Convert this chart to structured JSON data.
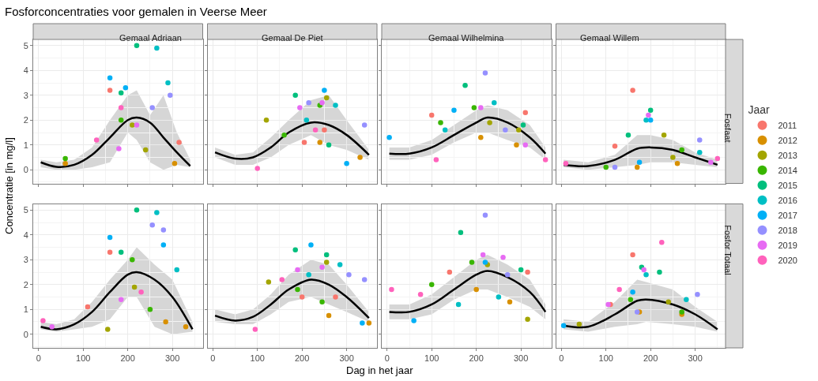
{
  "chart_data": [
    {
      "type": "scatter",
      "title": "Gemaal Adriaan",
      "annotations": [
        "Fosforconcentraties voor gemalen in Veerse Meer"
      ],
      "ylabel": "Concentratie [in mg/l]",
      "xlim": [
        -12,
        368
      ],
      "ylim": [
        -0.55,
        5.25
      ],
      "xticks": [
        0,
        100,
        200,
        300
      ],
      "yticks": [
        0,
        1,
        2,
        3,
        4,
        5
      ],
      "tick_labels": "y",
      "grid": true,
      "marker": "circle",
      "series": [
        {
          "type": "line",
          "marker": "none",
          "color": "#000000",
          "x": [
            5,
            40,
            80,
            120,
            160,
            200,
            220,
            250,
            280,
            310,
            340
          ],
          "values": [
            0.3,
            0.12,
            0.2,
            0.6,
            1.3,
            2.0,
            2.1,
            1.9,
            1.3,
            0.7,
            0.15
          ],
          "lower": [
            0.1,
            0,
            0,
            0.1,
            0.3,
            1.5,
            1.2,
            0.3,
            0,
            0.2,
            0.1
          ],
          "upper": [
            0.4,
            0.3,
            0.4,
            0.9,
            2.0,
            3.0,
            3.2,
            2.2,
            3.0,
            1.5,
            0.4
          ]
        },
        {
          "color": "#F8766D",
          "x": [
            160,
            315
          ],
          "values": [
            3.2,
            1.1
          ]
        },
        {
          "color": "#D89000",
          "x": [
            305,
            60
          ],
          "values": [
            0.25,
            0.25
          ]
        },
        {
          "color": "#A3A500",
          "x": [
            210,
            240
          ],
          "values": [
            1.8,
            0.8
          ]
        },
        {
          "color": "#39B600",
          "x": [
            185,
            60
          ],
          "values": [
            2.0,
            0.45
          ]
        },
        {
          "color": "#00BF7D",
          "x": [
            220,
            185
          ],
          "values": [
            5.0,
            3.1
          ]
        },
        {
          "color": "#00BFC4",
          "x": [
            265,
            290
          ],
          "values": [
            4.9,
            3.5
          ]
        },
        {
          "color": "#00B0F6",
          "x": [
            160,
            195
          ],
          "values": [
            3.7,
            3.3
          ]
        },
        {
          "color": "#9590FF",
          "x": [
            255,
            295
          ],
          "values": [
            2.5,
            3.0
          ]
        },
        {
          "color": "#E76BF3",
          "x": [
            180,
            220
          ],
          "values": [
            0.85,
            1.8
          ]
        },
        {
          "color": "#FF62BC",
          "x": [
            185,
            130
          ],
          "values": [
            2.5,
            1.2
          ]
        }
      ]
    },
    {
      "type": "scatter",
      "title": "Gemaal De Piet",
      "xlim": [
        -12,
        368
      ],
      "ylim": [
        -0.55,
        5.25
      ],
      "xticks": [
        0,
        100,
        200,
        300
      ],
      "yticks": [
        0,
        1,
        2,
        3,
        4,
        5
      ],
      "tick_labels": false,
      "grid": true,
      "marker": "circle",
      "series": [
        {
          "type": "line",
          "marker": "none",
          "color": "#000000",
          "x": [
            5,
            50,
            90,
            130,
            170,
            220,
            260,
            300,
            350
          ],
          "values": [
            0.7,
            0.45,
            0.5,
            0.9,
            1.5,
            1.9,
            1.8,
            1.4,
            0.6
          ],
          "lower": [
            0.5,
            0.2,
            0.2,
            0.5,
            1.0,
            1.4,
            1.0,
            0.8,
            0.4
          ],
          "upper": [
            0.9,
            0.6,
            0.7,
            1.3,
            2.0,
            2.8,
            3.0,
            2.0,
            0.8
          ]
        },
        {
          "color": "#F8766D",
          "x": [
            205,
            250
          ],
          "values": [
            1.1,
            1.6
          ]
        },
        {
          "color": "#D89000",
          "x": [
            330,
            240
          ],
          "values": [
            0.5,
            1.1
          ]
        },
        {
          "color": "#A3A500",
          "x": [
            120,
            255
          ],
          "values": [
            2.0,
            2.9
          ]
        },
        {
          "color": "#39B600",
          "x": [
            240,
            160
          ],
          "values": [
            2.6,
            1.4
          ]
        },
        {
          "color": "#00BF7D",
          "x": [
            185,
            260
          ],
          "values": [
            3.0,
            1.0
          ]
        },
        {
          "color": "#00BFC4",
          "x": [
            210,
            275
          ],
          "values": [
            2.0,
            2.6
          ]
        },
        {
          "color": "#00B0F6",
          "x": [
            250,
            300
          ],
          "values": [
            3.2,
            0.25
          ]
        },
        {
          "color": "#9590FF",
          "x": [
            215,
            340
          ],
          "values": [
            2.7,
            1.8
          ]
        },
        {
          "color": "#E76BF3",
          "x": [
            195,
            245
          ],
          "values": [
            2.5,
            2.7
          ]
        },
        {
          "color": "#FF62BC",
          "x": [
            100,
            230
          ],
          "values": [
            0.05,
            1.6
          ]
        }
      ]
    },
    {
      "type": "scatter",
      "title": "Gemaal Wilhelmina",
      "xlim": [
        -12,
        368
      ],
      "ylim": [
        -0.55,
        5.25
      ],
      "xticks": [
        0,
        100,
        200,
        300
      ],
      "yticks": [
        0,
        1,
        2,
        3,
        4,
        5
      ],
      "tick_labels": false,
      "grid": true,
      "marker": "circle",
      "series": [
        {
          "type": "line",
          "marker": "none",
          "color": "#000000",
          "x": [
            5,
            50,
            100,
            150,
            200,
            225,
            270,
            320,
            355
          ],
          "values": [
            0.65,
            0.65,
            0.9,
            1.4,
            1.9,
            2.1,
            1.9,
            1.3,
            0.65
          ],
          "lower": [
            0.4,
            0.4,
            0.6,
            1.1,
            1.5,
            1.5,
            1.2,
            0.9,
            0.4
          ],
          "upper": [
            0.9,
            0.9,
            1.2,
            1.8,
            2.4,
            2.6,
            2.4,
            1.8,
            0.9
          ]
        },
        {
          "color": "#F8766D",
          "x": [
            100,
            310
          ],
          "values": [
            2.2,
            2.3
          ]
        },
        {
          "color": "#D89000",
          "x": [
            290,
            210
          ],
          "values": [
            1.0,
            1.3
          ]
        },
        {
          "color": "#A3A500",
          "x": [
            230,
            295
          ],
          "values": [
            1.9,
            1.6
          ]
        },
        {
          "color": "#39B600",
          "x": [
            195,
            120
          ],
          "values": [
            2.5,
            1.9
          ]
        },
        {
          "color": "#00BF7D",
          "x": [
            175,
            305
          ],
          "values": [
            3.4,
            1.8
          ]
        },
        {
          "color": "#00BFC4",
          "x": [
            240,
            130
          ],
          "values": [
            2.7,
            1.6
          ]
        },
        {
          "color": "#00B0F6",
          "x": [
            5,
            150
          ],
          "values": [
            1.3,
            2.4
          ]
        },
        {
          "color": "#9590FF",
          "x": [
            220,
            265
          ],
          "values": [
            3.9,
            1.6
          ]
        },
        {
          "color": "#E76BF3",
          "x": [
            210,
            310
          ],
          "values": [
            2.5,
            1.0
          ]
        },
        {
          "color": "#FF62BC",
          "x": [
            110,
            355
          ],
          "values": [
            0.4,
            0.4
          ]
        }
      ]
    },
    {
      "type": "scatter",
      "title": "Gemaal Willem",
      "annotations": [
        "Fosfaat"
      ],
      "legend_title": "Jaar",
      "legend": "right",
      "xlim": [
        -12,
        368
      ],
      "ylim": [
        -0.55,
        5.25
      ],
      "xticks": [
        0,
        100,
        200,
        300
      ],
      "yticks": [
        0,
        1,
        2,
        3,
        4,
        5
      ],
      "tick_labels": false,
      "grid": true,
      "marker": "circle",
      "series": [
        {
          "type": "line",
          "marker": "none",
          "color": "#000000",
          "x": [
            5,
            60,
            120,
            170,
            200,
            250,
            300,
            350
          ],
          "values": [
            0.2,
            0.15,
            0.4,
            0.85,
            0.9,
            0.8,
            0.5,
            0.2
          ],
          "lower": [
            0.1,
            0,
            0.1,
            0.2,
            0.3,
            0.3,
            0.2,
            0.1
          ],
          "upper": [
            0.4,
            0.3,
            0.6,
            1.4,
            1.4,
            1.2,
            0.7,
            0.4
          ]
        },
        {
          "name": "2011",
          "color": "#F8766D",
          "x": [
            160,
            120
          ],
          "values": [
            3.2,
            0.95
          ]
        },
        {
          "name": "2012",
          "color": "#D89000",
          "x": [
            170,
            260
          ],
          "values": [
            0.1,
            0.25
          ]
        },
        {
          "name": "2013",
          "color": "#A3A500",
          "x": [
            230,
            250
          ],
          "values": [
            1.4,
            0.5
          ]
        },
        {
          "name": "2014",
          "color": "#39B600",
          "x": [
            270,
            100
          ],
          "values": [
            0.8,
            0.1
          ]
        },
        {
          "name": "2015",
          "color": "#00BF7D",
          "x": [
            150,
            200
          ],
          "values": [
            1.4,
            2.4
          ]
        },
        {
          "name": "2016",
          "color": "#00BFC4",
          "x": [
            190,
            310
          ],
          "values": [
            2.0,
            0.7
          ]
        },
        {
          "name": "2017",
          "color": "#00B0F6",
          "x": [
            200,
            175
          ],
          "values": [
            2.0,
            0.3
          ]
        },
        {
          "name": "2018",
          "color": "#9590FF",
          "x": [
            310,
            120
          ],
          "values": [
            1.2,
            0.1
          ]
        },
        {
          "name": "2019",
          "color": "#E76BF3",
          "x": [
            195,
            335
          ],
          "values": [
            2.2,
            0.3
          ]
        },
        {
          "name": "2020",
          "color": "#FF62BC",
          "x": [
            10,
            350
          ],
          "values": [
            0.25,
            0.45
          ]
        }
      ]
    },
    {
      "type": "scatter",
      "xlim": [
        -12,
        368
      ],
      "ylim": [
        -0.55,
        5.25
      ],
      "xticks": [
        0,
        100,
        200,
        300
      ],
      "yticks": [
        0,
        1,
        2,
        3,
        4,
        5
      ],
      "grid": true,
      "marker": "circle",
      "series": [
        {
          "type": "line",
          "marker": "none",
          "color": "#000000",
          "x": [
            5,
            40,
            80,
            120,
            160,
            200,
            220,
            260,
            300,
            345
          ],
          "values": [
            0.3,
            0.2,
            0.4,
            0.9,
            1.7,
            2.4,
            2.5,
            2.2,
            1.5,
            0.2
          ],
          "lower": [
            0.2,
            0.1,
            0.2,
            0.3,
            0.6,
            1.5,
            1.5,
            0.3,
            0,
            0.1
          ],
          "upper": [
            0.5,
            0.4,
            0.6,
            1.3,
            2.2,
            3.0,
            3.5,
            2.8,
            2.2,
            0.5
          ]
        },
        {
          "color": "#F8766D",
          "x": [
            160,
            110
          ],
          "values": [
            3.3,
            1.1
          ]
        },
        {
          "color": "#D89000",
          "x": [
            330,
            285
          ],
          "values": [
            0.3,
            0.5
          ]
        },
        {
          "color": "#A3A500",
          "x": [
            215,
            155
          ],
          "values": [
            1.9,
            0.2
          ]
        },
        {
          "color": "#39B600",
          "x": [
            210,
            250
          ],
          "values": [
            3.0,
            1.0
          ]
        },
        {
          "color": "#00BF7D",
          "x": [
            220,
            185
          ],
          "values": [
            5.0,
            3.3
          ]
        },
        {
          "color": "#00BFC4",
          "x": [
            265,
            310
          ],
          "values": [
            4.9,
            2.6
          ]
        },
        {
          "color": "#00B0F6",
          "x": [
            160,
            280
          ],
          "values": [
            3.9,
            3.6
          ]
        },
        {
          "color": "#9590FF",
          "x": [
            255,
            280
          ],
          "values": [
            4.4,
            4.2
          ]
        },
        {
          "color": "#E76BF3",
          "x": [
            185,
            30
          ],
          "values": [
            1.4,
            0.3
          ]
        },
        {
          "color": "#FF62BC",
          "x": [
            10,
            230
          ],
          "values": [
            0.55,
            1.7
          ]
        }
      ]
    },
    {
      "type": "scatter",
      "xlabel": "Dag in het jaar",
      "xlim": [
        -12,
        368
      ],
      "ylim": [
        -0.55,
        5.25
      ],
      "xticks": [
        0,
        100,
        200,
        300
      ],
      "yticks": [
        0,
        1,
        2,
        3,
        4,
        5
      ],
      "tick_labels": "x",
      "grid": true,
      "marker": "circle",
      "series": [
        {
          "type": "line",
          "marker": "none",
          "color": "#000000",
          "x": [
            5,
            50,
            90,
            130,
            170,
            220,
            260,
            300,
            350
          ],
          "values": [
            0.75,
            0.55,
            0.7,
            1.2,
            1.8,
            2.2,
            2.0,
            1.5,
            0.65
          ],
          "lower": [
            0.5,
            0.4,
            0.4,
            0.8,
            1.3,
            1.5,
            1.2,
            0.9,
            0.5
          ],
          "upper": [
            1.0,
            0.8,
            1.0,
            1.6,
            2.4,
            3.0,
            2.8,
            2.0,
            0.9
          ]
        },
        {
          "color": "#F8766D",
          "x": [
            200,
            275
          ],
          "values": [
            1.5,
            1.5
          ]
        },
        {
          "color": "#D89000",
          "x": [
            350,
            260
          ],
          "values": [
            0.45,
            0.75
          ]
        },
        {
          "color": "#A3A500",
          "x": [
            125,
            255
          ],
          "values": [
            2.1,
            2.9
          ]
        },
        {
          "color": "#39B600",
          "x": [
            190,
            245
          ],
          "values": [
            1.8,
            1.3
          ]
        },
        {
          "color": "#00BF7D",
          "x": [
            185,
            255
          ],
          "values": [
            3.4,
            3.2
          ]
        },
        {
          "color": "#00BFC4",
          "x": [
            215,
            285
          ],
          "values": [
            2.4,
            2.8
          ]
        },
        {
          "color": "#00B0F6",
          "x": [
            220,
            335
          ],
          "values": [
            3.6,
            0.45
          ]
        },
        {
          "color": "#9590FF",
          "x": [
            305,
            340
          ],
          "values": [
            2.4,
            2.2
          ]
        },
        {
          "color": "#E76BF3",
          "x": [
            190,
            245
          ],
          "values": [
            2.6,
            2.7
          ]
        },
        {
          "color": "#FF62BC",
          "x": [
            95,
            155
          ],
          "values": [
            0.2,
            2.2
          ]
        }
      ]
    },
    {
      "type": "scatter",
      "xlim": [
        -12,
        368
      ],
      "ylim": [
        -0.55,
        5.25
      ],
      "xticks": [
        0,
        100,
        200,
        300
      ],
      "yticks": [
        0,
        1,
        2,
        3,
        4,
        5
      ],
      "tick_labels": "x",
      "grid": true,
      "marker": "circle",
      "series": [
        {
          "type": "line",
          "marker": "none",
          "color": "#000000",
          "x": [
            5,
            50,
            100,
            150,
            200,
            225,
            270,
            320,
            355
          ],
          "values": [
            0.9,
            0.9,
            1.2,
            1.8,
            2.4,
            2.55,
            2.3,
            1.7,
            0.9
          ],
          "lower": [
            0.6,
            0.6,
            0.8,
            1.4,
            1.8,
            1.8,
            1.5,
            1.1,
            0.6
          ],
          "upper": [
            1.2,
            1.2,
            1.6,
            2.3,
            3.0,
            3.2,
            2.8,
            2.2,
            1.2
          ]
        },
        {
          "color": "#F8766D",
          "x": [
            140,
            315
          ],
          "values": [
            2.5,
            2.5
          ]
        },
        {
          "color": "#D89000",
          "x": [
            275,
            200
          ],
          "values": [
            1.3,
            1.8
          ]
        },
        {
          "color": "#A3A500",
          "x": [
            225,
            315
          ],
          "values": [
            2.8,
            0.6
          ]
        },
        {
          "color": "#39B600",
          "x": [
            190,
            100
          ],
          "values": [
            2.9,
            2.0
          ]
        },
        {
          "color": "#00BF7D",
          "x": [
            165,
            300
          ],
          "values": [
            4.1,
            2.6
          ]
        },
        {
          "color": "#00BFC4",
          "x": [
            160,
            250
          ],
          "values": [
            1.2,
            1.5
          ]
        },
        {
          "color": "#00B0F6",
          "x": [
            220,
            60
          ],
          "values": [
            2.9,
            0.55
          ]
        },
        {
          "color": "#9590FF",
          "x": [
            220,
            270
          ],
          "values": [
            4.8,
            2.4
          ]
        },
        {
          "color": "#E76BF3",
          "x": [
            215,
            260
          ],
          "values": [
            3.2,
            3.1
          ]
        },
        {
          "color": "#FF62BC",
          "x": [
            75,
            10
          ],
          "values": [
            1.6,
            1.8
          ]
        }
      ]
    },
    {
      "type": "scatter",
      "annotations": [
        "Fosfor Totaal"
      ],
      "xlim": [
        -12,
        368
      ],
      "ylim": [
        -0.55,
        5.25
      ],
      "xticks": [
        0,
        100,
        200,
        300
      ],
      "yticks": [
        0,
        1,
        2,
        3,
        4,
        5
      ],
      "tick_labels": "x",
      "grid": true,
      "marker": "circle",
      "series": [
        {
          "type": "line",
          "marker": "none",
          "color": "#000000",
          "x": [
            5,
            60,
            120,
            170,
            190,
            250,
            300,
            350
          ],
          "values": [
            0.35,
            0.3,
            0.8,
            1.35,
            1.4,
            1.2,
            0.8,
            0.2
          ],
          "lower": [
            0.2,
            0.1,
            0.3,
            0.4,
            0.5,
            0.4,
            0.3,
            0.1
          ],
          "upper": [
            0.6,
            0.5,
            1.3,
            2.2,
            2.1,
            1.8,
            1.1,
            0.5
          ]
        },
        {
          "color": "#F8766D",
          "x": [
            160,
            110
          ],
          "values": [
            3.2,
            1.2
          ]
        },
        {
          "color": "#D89000",
          "x": [
            175,
            270
          ],
          "values": [
            0.9,
            0.8
          ]
        },
        {
          "color": "#A3A500",
          "x": [
            240,
            40
          ],
          "values": [
            1.3,
            0.4
          ]
        },
        {
          "color": "#39B600",
          "x": [
            155,
            270
          ],
          "values": [
            1.4,
            0.9
          ]
        },
        {
          "color": "#00BF7D",
          "x": [
            180,
            220
          ],
          "values": [
            2.7,
            2.5
          ]
        },
        {
          "color": "#00BFC4",
          "x": [
            190,
            280
          ],
          "values": [
            2.4,
            1.4
          ]
        },
        {
          "color": "#00B0F6",
          "x": [
            160,
            5
          ],
          "values": [
            1.7,
            0.35
          ]
        },
        {
          "color": "#9590FF",
          "x": [
            305,
            170
          ],
          "values": [
            1.6,
            0.9
          ]
        },
        {
          "color": "#E76BF3",
          "x": [
            185,
            105
          ],
          "values": [
            2.6,
            1.2
          ]
        },
        {
          "color": "#FF62BC",
          "x": [
            225,
            130
          ],
          "values": [
            3.7,
            1.8
          ]
        }
      ]
    }
  ]
}
